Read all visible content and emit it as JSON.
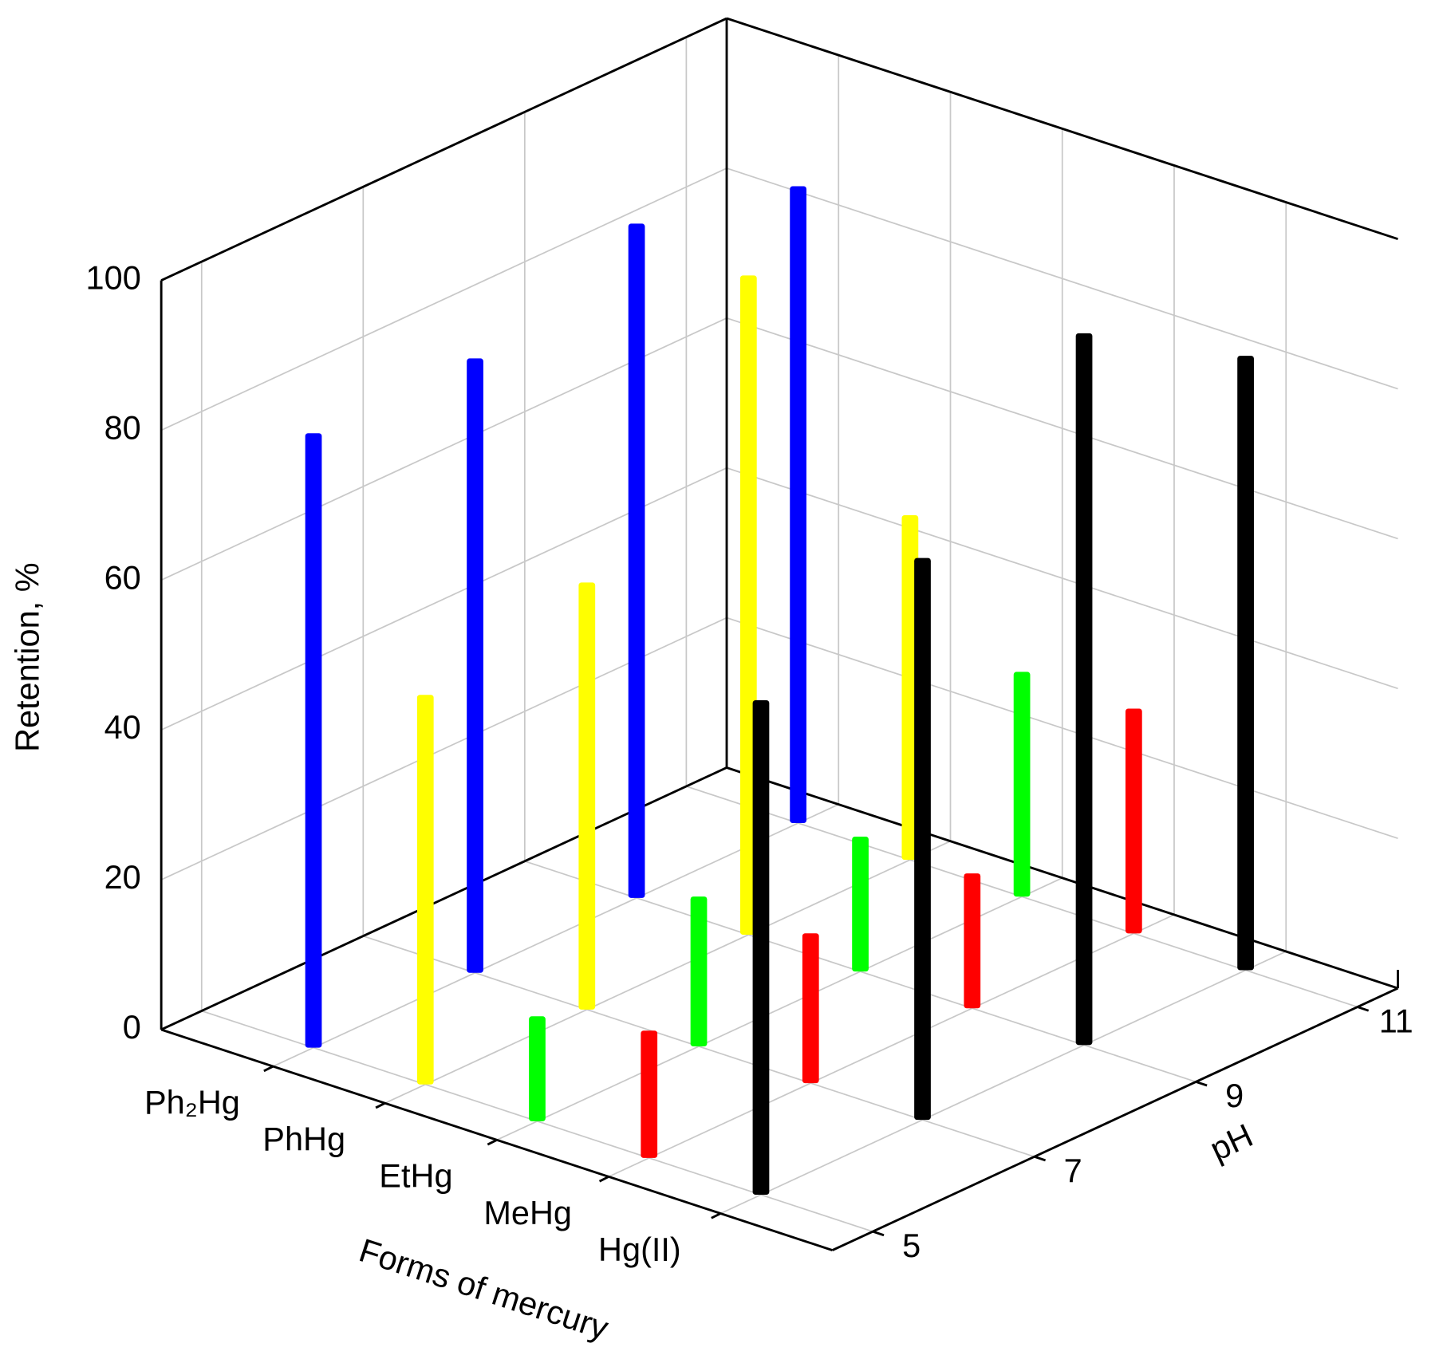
{
  "chart_data": {
    "type": "bar3d",
    "x_label": "pH",
    "z_label": "Retention, %",
    "category_label": "Forms of mercury",
    "x": [
      5,
      7,
      9,
      11
    ],
    "xlim": [
      4.5,
      11.5
    ],
    "xticks": [
      5,
      7,
      9,
      11
    ],
    "zlim": [
      0,
      100
    ],
    "zticks": [
      0,
      20,
      40,
      60,
      80,
      100
    ],
    "grid": true,
    "series": [
      {
        "name": "Ph₂Hg",
        "color": "#0000ff",
        "values": [
          82,
          82,
          90,
          85
        ]
      },
      {
        "name": "PhHg",
        "color": "#ffff00",
        "values": [
          52,
          57,
          88,
          46
        ]
      },
      {
        "name": "EtHg",
        "color": "#00ff00",
        "values": [
          14,
          20,
          18,
          30
        ]
      },
      {
        "name": "MeHg",
        "color": "#ff0000",
        "values": [
          17,
          20,
          18,
          30
        ]
      },
      {
        "name": "Hg(II)",
        "color": "#000000",
        "values": [
          66,
          75,
          95,
          82
        ]
      }
    ]
  }
}
